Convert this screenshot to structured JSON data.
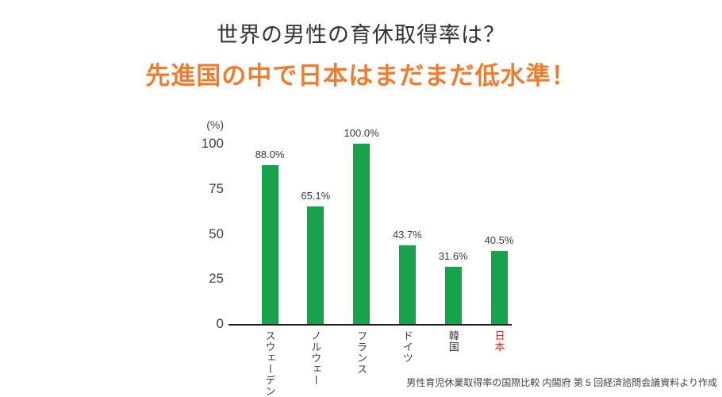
{
  "header": {
    "title": "世界の男性の育休取得率は？",
    "subtitle": "先進国の中で日本はまだまだ低水準！",
    "title_color": "#333333",
    "subtitle_color": "#ed7d31"
  },
  "chart_data": {
    "type": "bar",
    "categories": [
      "スウェーデン",
      "ノルウェー",
      "フランス",
      "ドイツ",
      "韓国",
      "日本"
    ],
    "values": [
      88.0,
      65.1,
      100.0,
      43.7,
      31.6,
      40.5
    ],
    "value_labels": [
      "88.0%",
      "65.1%",
      "100.0%",
      "43.7%",
      "31.6%",
      "40.5%"
    ],
    "unit_label": "(%)",
    "y_ticks": [
      100,
      75,
      50,
      25,
      0
    ],
    "ylim": [
      0,
      100
    ],
    "grid": false,
    "legend": "none",
    "bar_color": "#16a34b",
    "axis_color": "#1a1a1a",
    "tick_label_color": "#404040",
    "highlight_index": 5,
    "highlight_label_color": "#e0281e"
  },
  "footer": {
    "source_note": "男性育児休業取得率の国際比較 内閣府 第 5 回経済諮問会議資料より作成"
  }
}
